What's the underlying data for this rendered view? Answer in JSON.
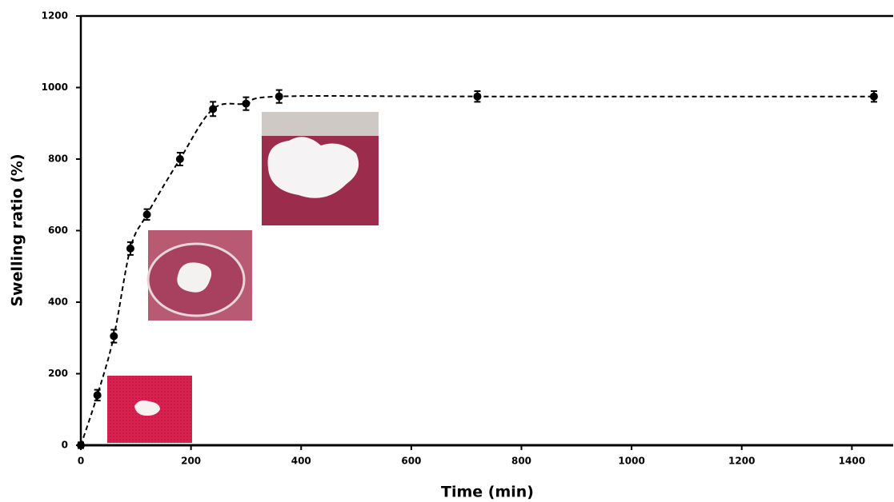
{
  "chart_data": {
    "type": "line",
    "xlabel": "Time (min)",
    "ylabel": "Swelling ratio (%)",
    "x": [
      0,
      30,
      60,
      90,
      120,
      180,
      240,
      300,
      360,
      720,
      1440
    ],
    "values": [
      0,
      140,
      305,
      550,
      645,
      800,
      940,
      955,
      975,
      975,
      975
    ],
    "errors": [
      8,
      15,
      18,
      18,
      15,
      18,
      20,
      18,
      18,
      15,
      15
    ],
    "color": "#000000",
    "dashed": true,
    "xlim": [
      0,
      1475
    ],
    "xticks": [
      0,
      200,
      400,
      600,
      800,
      1000,
      1200,
      1400
    ],
    "ylim": [
      0,
      1200
    ],
    "yticks": [
      0,
      200,
      400,
      600,
      800,
      1000,
      1200
    ]
  }
}
